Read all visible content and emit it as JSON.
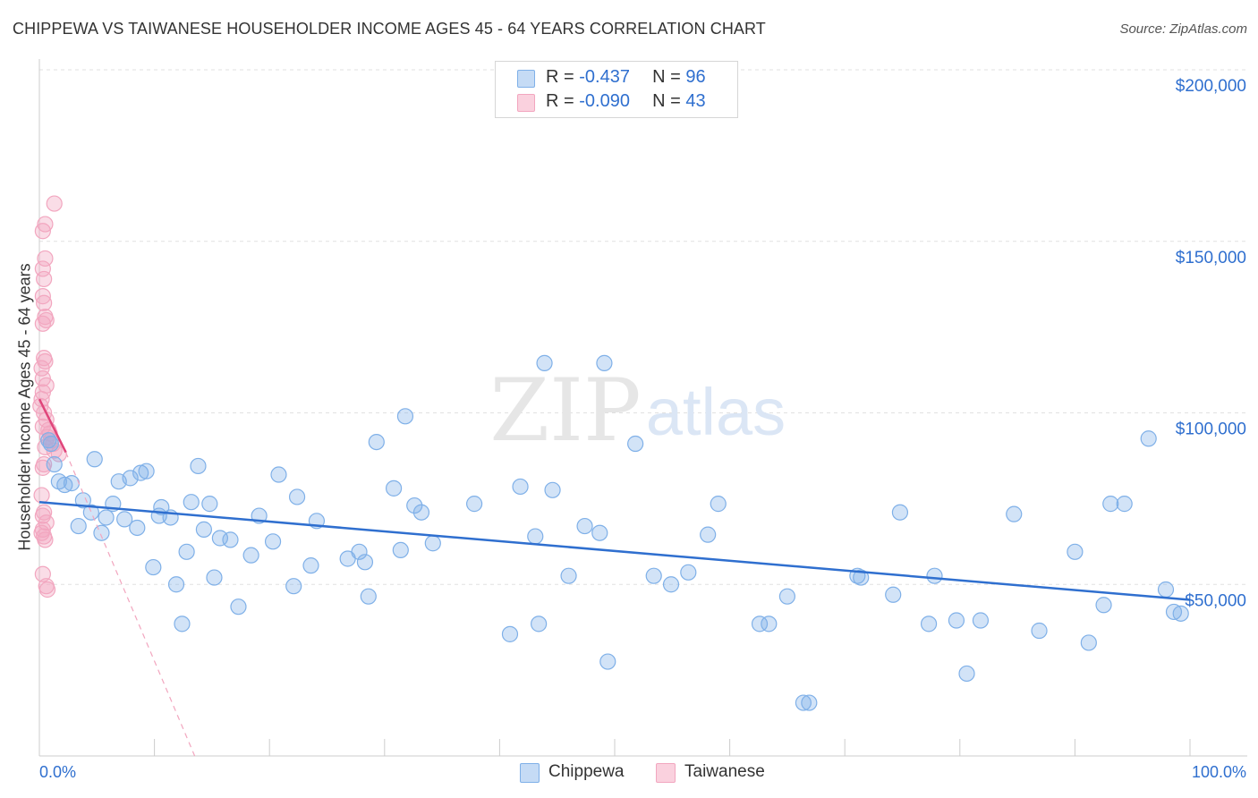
{
  "title": "CHIPPEWA VS TAIWANESE HOUSEHOLDER INCOME AGES 45 - 64 YEARS CORRELATION CHART",
  "source": "Source: ZipAtlas.com",
  "watermark": {
    "zip": "ZIP",
    "atlas": "atlas"
  },
  "legend": {
    "rows": [
      {
        "r_label": "R = ",
        "r_value": "-0.437",
        "n_label": "N = ",
        "n_value": "96"
      },
      {
        "r_label": "R = ",
        "r_value": "-0.090",
        "n_label": "N = ",
        "n_value": "43"
      }
    ]
  },
  "chart_data": {
    "type": "scatter",
    "title": "CHIPPEWA VS TAIWANESE HOUSEHOLDER INCOME AGES 45 - 64 YEARS CORRELATION CHART",
    "xlabel": "",
    "ylabel": "Householder Income Ages 45 - 64 years",
    "xlim": [
      0,
      100
    ],
    "ylim": [
      0,
      200000
    ],
    "x_tick_labels": {
      "left": "0.0%",
      "right": "100.0%"
    },
    "y_ticks": [
      {
        "value": 50000,
        "label": "$50,000"
      },
      {
        "value": 100000,
        "label": "$100,000"
      },
      {
        "value": 150000,
        "label": "$150,000"
      },
      {
        "value": 200000,
        "label": "$200,000"
      }
    ],
    "grid": "horizontal dashed",
    "legend_position": "top-center",
    "colors": {
      "chippewa": "#7fb0e8",
      "chippewa_line": "#2f6fcf",
      "taiwanese": "#f2a6bf",
      "taiwanese_line": "#e0457b"
    },
    "series": [
      {
        "name": "Chippewa",
        "r": -0.437,
        "n": 96,
        "trend": {
          "x1": 0,
          "y1": 74000,
          "x2": 100,
          "y2": 45500
        },
        "points": [
          [
            0.8,
            92000
          ],
          [
            1.0,
            91000
          ],
          [
            1.3,
            85000
          ],
          [
            1.7,
            80000
          ],
          [
            2.2,
            79000
          ],
          [
            2.8,
            79500
          ],
          [
            3.4,
            67000
          ],
          [
            3.8,
            74500
          ],
          [
            4.5,
            71000
          ],
          [
            4.8,
            86500
          ],
          [
            5.4,
            65000
          ],
          [
            5.8,
            69500
          ],
          [
            6.4,
            73500
          ],
          [
            6.9,
            80000
          ],
          [
            7.4,
            69000
          ],
          [
            7.9,
            81000
          ],
          [
            8.5,
            66500
          ],
          [
            8.8,
            82500
          ],
          [
            9.3,
            83000
          ],
          [
            9.9,
            55000
          ],
          [
            10.4,
            70000
          ],
          [
            10.6,
            72500
          ],
          [
            11.4,
            69500
          ],
          [
            11.9,
            50000
          ],
          [
            12.4,
            38500
          ],
          [
            12.8,
            59500
          ],
          [
            13.2,
            74000
          ],
          [
            13.8,
            84500
          ],
          [
            14.3,
            66000
          ],
          [
            14.8,
            73500
          ],
          [
            15.2,
            52000
          ],
          [
            15.7,
            63500
          ],
          [
            16.6,
            63000
          ],
          [
            17.3,
            43500
          ],
          [
            18.4,
            58500
          ],
          [
            19.1,
            70000
          ],
          [
            20.3,
            62500
          ],
          [
            20.8,
            82000
          ],
          [
            22.4,
            75500
          ],
          [
            22.1,
            49500
          ],
          [
            23.6,
            55500
          ],
          [
            24.1,
            68500
          ],
          [
            26.8,
            57500
          ],
          [
            27.8,
            59500
          ],
          [
            28.3,
            56500
          ],
          [
            28.6,
            46500
          ],
          [
            29.3,
            91500
          ],
          [
            30.8,
            78000
          ],
          [
            31.4,
            60000
          ],
          [
            31.8,
            99000
          ],
          [
            32.6,
            73000
          ],
          [
            33.2,
            71000
          ],
          [
            34.2,
            62000
          ],
          [
            37.8,
            73500
          ],
          [
            40.9,
            35500
          ],
          [
            41.8,
            78500
          ],
          [
            43.1,
            64000
          ],
          [
            43.4,
            38500
          ],
          [
            43.9,
            114500
          ],
          [
            44.6,
            77500
          ],
          [
            46.0,
            52500
          ],
          [
            47.4,
            67000
          ],
          [
            48.7,
            65000
          ],
          [
            49.1,
            114500
          ],
          [
            49.4,
            27500
          ],
          [
            51.8,
            91000
          ],
          [
            53.4,
            52500
          ],
          [
            54.9,
            50000
          ],
          [
            56.4,
            53500
          ],
          [
            58.1,
            64500
          ],
          [
            59.0,
            73500
          ],
          [
            62.6,
            38500
          ],
          [
            63.4,
            38500
          ],
          [
            65.0,
            46500
          ],
          [
            66.4,
            15500
          ],
          [
            66.9,
            15500
          ],
          [
            71.1,
            52500
          ],
          [
            71.4,
            52000
          ],
          [
            74.2,
            47000
          ],
          [
            74.8,
            71000
          ],
          [
            77.3,
            38500
          ],
          [
            77.8,
            52500
          ],
          [
            79.7,
            39500
          ],
          [
            80.6,
            24000
          ],
          [
            81.8,
            39500
          ],
          [
            84.7,
            70500
          ],
          [
            86.9,
            36500
          ],
          [
            90.0,
            59500
          ],
          [
            91.2,
            33000
          ],
          [
            92.5,
            44000
          ],
          [
            93.1,
            73500
          ],
          [
            94.3,
            73500
          ],
          [
            96.4,
            92500
          ],
          [
            97.9,
            48500
          ],
          [
            98.6,
            42000
          ],
          [
            99.2,
            41500
          ]
        ]
      },
      {
        "name": "Taiwanese",
        "r": -0.09,
        "n": 43,
        "trend": {
          "x1": 0,
          "y1": 104000,
          "x2": 2.3,
          "y2": 88500
        },
        "trend_extension": {
          "x1": 2.3,
          "y1": 88500,
          "x2": 13.5,
          "y2": 0
        },
        "points": [
          [
            1.3,
            161000
          ],
          [
            0.5,
            155000
          ],
          [
            0.3,
            153000
          ],
          [
            0.5,
            145000
          ],
          [
            0.3,
            142000
          ],
          [
            0.4,
            139000
          ],
          [
            0.3,
            134000
          ],
          [
            0.4,
            132000
          ],
          [
            0.5,
            128000
          ],
          [
            0.6,
            127000
          ],
          [
            0.3,
            126000
          ],
          [
            0.4,
            116000
          ],
          [
            0.5,
            115000
          ],
          [
            0.2,
            113000
          ],
          [
            0.3,
            110000
          ],
          [
            0.6,
            108000
          ],
          [
            0.3,
            106000
          ],
          [
            0.2,
            104000
          ],
          [
            0.1,
            102000
          ],
          [
            0.4,
            100000
          ],
          [
            0.6,
            98000
          ],
          [
            0.3,
            96000
          ],
          [
            0.8,
            95000
          ],
          [
            0.9,
            94000
          ],
          [
            0.7,
            93000
          ],
          [
            1.0,
            92000
          ],
          [
            1.2,
            91000
          ],
          [
            0.5,
            90000
          ],
          [
            1.3,
            89000
          ],
          [
            1.7,
            88000
          ],
          [
            0.4,
            85000
          ],
          [
            0.3,
            84000
          ],
          [
            0.2,
            76000
          ],
          [
            0.4,
            71000
          ],
          [
            0.3,
            70000
          ],
          [
            0.6,
            68000
          ],
          [
            0.3,
            66000
          ],
          [
            0.2,
            65000
          ],
          [
            0.4,
            64000
          ],
          [
            0.5,
            63000
          ],
          [
            0.3,
            53000
          ],
          [
            0.6,
            49500
          ],
          [
            0.7,
            48500
          ]
        ]
      }
    ]
  }
}
